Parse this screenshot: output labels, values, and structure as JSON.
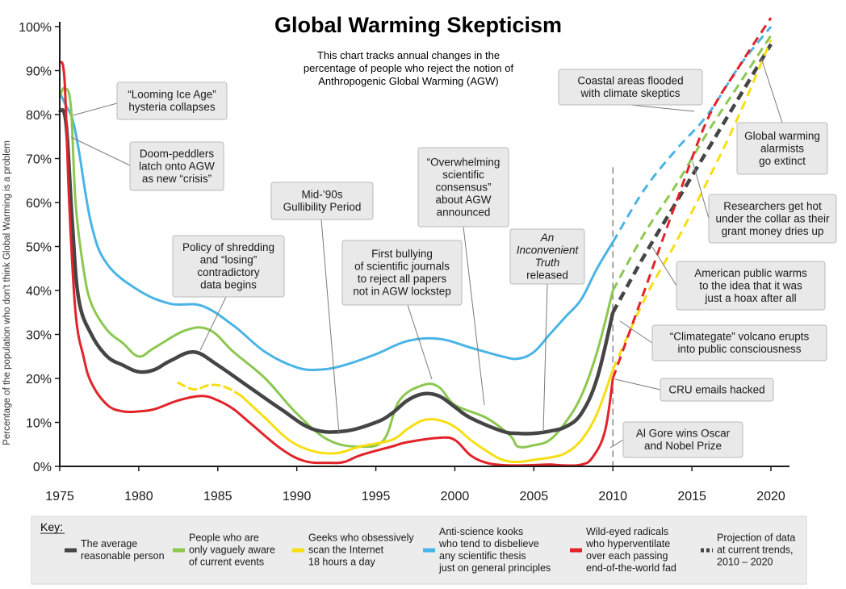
{
  "chart_data": {
    "type": "line",
    "title": "Global Warming Skepticism",
    "subtitle": [
      "This chart tracks annual changes in the",
      "percentage of people who reject the notion of",
      "Anthropogenic Global Warming (AGW)"
    ],
    "ylabel": "Percentage of the population who don't think Global Warming is a problem",
    "xlim": [
      1975,
      2020
    ],
    "ylim": [
      0,
      100
    ],
    "x_ticks": [
      1975,
      1980,
      1985,
      1990,
      1995,
      2000,
      2005,
      2010,
      2015,
      2020
    ],
    "x_tick_labels": [
      "1975",
      "1980",
      "1985",
      "1990",
      "1995",
      "2000",
      "2005",
      "2010",
      "2015",
      "2020"
    ],
    "y_ticks": [
      0,
      10,
      20,
      30,
      40,
      50,
      60,
      70,
      80,
      90,
      100
    ],
    "y_tick_labels": [
      "0%",
      "10%",
      "20%",
      "30%",
      "40%",
      "50%",
      "60%",
      "70%",
      "80%",
      "90%",
      "100%"
    ],
    "projection_start": 2010,
    "series": [
      {
        "name": "Anti-science kooks who tend to disbelieve any scientific thesis just on general principles",
        "color": "#4ab4e6",
        "x": [
          1975,
          1975.4,
          1975.8,
          1976.2,
          1977,
          1978,
          1980,
          1982,
          1984,
          1986,
          1988,
          1990,
          1991.5,
          1993,
          1995,
          1997,
          1999,
          2001,
          2003,
          2004,
          2005,
          2006,
          2007,
          2008,
          2009,
          2010
        ],
        "values": [
          85,
          82,
          79,
          72,
          55,
          46,
          40,
          37,
          36.5,
          32,
          26,
          22.5,
          22,
          23,
          25.5,
          28.5,
          29,
          27,
          25,
          24.5,
          26,
          30,
          34,
          38,
          45,
          51
        ],
        "projection": {
          "x": [
            2010,
            2012,
            2014,
            2016,
            2018,
            2020
          ],
          "values": [
            51,
            63,
            72,
            80,
            91,
            100
          ]
        }
      },
      {
        "name": "People who are only vaguely aware of current events",
        "color": "#8cc850",
        "x": [
          1975,
          1975.3,
          1975.7,
          1976,
          1976.5,
          1977,
          1978,
          1979,
          1980,
          1981,
          1983,
          1984.5,
          1986,
          1988,
          1990,
          1992,
          1994,
          1995.5,
          1996.5,
          1998,
          1999,
          2000,
          2002,
          2003.5,
          2004,
          2005,
          2006,
          2007,
          2008,
          2009,
          2010
        ],
        "values": [
          84,
          86,
          82,
          60,
          45,
          37,
          31,
          28,
          25,
          27,
          31,
          31,
          26,
          20,
          12,
          6,
          4.5,
          6,
          15,
          18.5,
          18,
          14,
          11,
          7,
          4.5,
          4.8,
          6,
          10,
          16,
          26,
          40
        ],
        "projection": {
          "x": [
            2010,
            2012,
            2014,
            2016,
            2018,
            2020
          ],
          "values": [
            40,
            53,
            64,
            76,
            87,
            98
          ]
        }
      },
      {
        "name": "The average reasonable person",
        "color": "#454545",
        "x": [
          1975,
          1975.4,
          1975.8,
          1976.2,
          1977,
          1978,
          1979,
          1980,
          1981,
          1982,
          1983.5,
          1985,
          1987,
          1989,
          1991,
          1993,
          1995,
          1996,
          1997,
          1998,
          1999,
          2000,
          2001,
          2003,
          2004,
          2005,
          2006,
          2007,
          2008,
          2009,
          2010
        ],
        "values": [
          81,
          78,
          55,
          38,
          30,
          25,
          23,
          21.5,
          22,
          24,
          26,
          23,
          18,
          13,
          8.5,
          8,
          10,
          12,
          15,
          16.5,
          16,
          13.5,
          11,
          8,
          7.5,
          7.5,
          8,
          9,
          12,
          20,
          35
        ],
        "projection": {
          "x": [
            2010,
            2012,
            2014,
            2016,
            2018,
            2020
          ],
          "values": [
            35,
            48,
            60,
            72,
            84,
            96
          ]
        }
      },
      {
        "name": "Geeks who obsessively scan the Internet 18 hours a day",
        "color": "#f7de12",
        "x": [
          1982.5,
          1983.5,
          1984.5,
          1985.5,
          1986.5,
          1988,
          1989.5,
          1991,
          1992.5,
          1994,
          1996,
          1997,
          1998,
          1999,
          2000,
          2001,
          2002,
          2003,
          2004,
          2005,
          2006,
          2007,
          2008,
          2009,
          2010
        ],
        "values": [
          19,
          17.5,
          18.5,
          18,
          16,
          11,
          6,
          3.5,
          3,
          4.5,
          6,
          8.5,
          10.5,
          10.5,
          9,
          6,
          3.5,
          1.5,
          1,
          1.5,
          2,
          3,
          6,
          12,
          22
        ],
        "dashed_until": 1987.5,
        "projection": {
          "x": [
            2010,
            2012,
            2014,
            2016,
            2018,
            2020
          ],
          "values": [
            22,
            38,
            51,
            65,
            80,
            97
          ]
        }
      },
      {
        "name": "Wild-eyed radicals who hyperventilate over each passing end-of-the-world fad",
        "color": "#e2232a",
        "x": [
          1975,
          1975.3,
          1975.6,
          1976,
          1976.5,
          1977,
          1978,
          1979,
          1980,
          1981,
          1982.5,
          1984,
          1985,
          1986,
          1987,
          1989,
          1990.5,
          1992,
          1993,
          1994,
          1996,
          1997,
          1999,
          2000,
          2001,
          2002,
          2003,
          2004,
          2005,
          2006,
          2007,
          2008,
          2008.7,
          2009.5,
          2010
        ],
        "values": [
          92,
          88,
          60,
          35,
          25,
          19,
          14,
          12.5,
          12.5,
          13,
          15,
          16,
          15,
          13,
          10,
          4,
          1.2,
          0.8,
          1,
          2.5,
          4.5,
          5.5,
          6.5,
          6,
          2.5,
          0.8,
          0.3,
          0.2,
          0.3,
          0.4,
          0.2,
          0.4,
          2,
          8,
          20
        ],
        "projection": {
          "x": [
            2010,
            2012,
            2014,
            2016,
            2018,
            2020
          ],
          "values": [
            20,
            40,
            60,
            79,
            91,
            102
          ]
        }
      }
    ],
    "annotations": [
      {
        "lines": [
          "“Looming Ice Age”",
          "hysteria collapses"
        ]
      },
      {
        "lines": [
          "Doom-peddlers",
          "latch onto AGW",
          "as new “crisis”"
        ]
      },
      {
        "lines": [
          "Policy of shredding",
          "and “losing”",
          "contradictory",
          "data begins"
        ]
      },
      {
        "lines": [
          "Mid-’90s",
          "Gullibility Period"
        ]
      },
      {
        "lines": [
          "First bullying",
          "of scientific journals",
          "to reject all papers",
          "not in AGW lockstep"
        ]
      },
      {
        "lines": [
          "“Overwhelming",
          "scientific",
          "consensus”",
          "about AGW",
          "announced"
        ]
      },
      {
        "lines": [
          "An",
          "Inconvenient",
          "Truth",
          "released"
        ],
        "italic_lines": 3
      },
      {
        "lines": [
          "Coastal areas flooded",
          "with climate skeptics"
        ]
      },
      {
        "lines": [
          "Global warming",
          "alarmists",
          "go extinct"
        ]
      },
      {
        "lines": [
          "Researchers get hot",
          "under the collar as their",
          "grant money dries up"
        ]
      },
      {
        "lines": [
          "American public warms",
          "to the idea that it was",
          "just a hoax after all"
        ]
      },
      {
        "lines": [
          "“Climategate” volcano erupts",
          "into public consciousness"
        ]
      },
      {
        "lines": [
          "CRU emails hacked"
        ]
      },
      {
        "lines": [
          "Al Gore wins Oscar",
          "and Nobel Prize"
        ]
      }
    ]
  },
  "key": {
    "label": "Key:",
    "items": [
      {
        "lines": [
          "The average",
          "reasonable person"
        ],
        "color": "#454545",
        "dashed": false
      },
      {
        "lines": [
          "People who are",
          "only vaguely aware",
          "of current events"
        ],
        "color": "#8cc850",
        "dashed": false
      },
      {
        "lines": [
          "Geeks who obsessively",
          "scan the Internet",
          "18 hours a day"
        ],
        "color": "#f7de12",
        "dashed": false
      },
      {
        "lines": [
          "Anti-science kooks",
          "who tend to disbelieve",
          "any scientific thesis",
          "just on general principles"
        ],
        "color": "#4ab4e6",
        "dashed": false
      },
      {
        "lines": [
          "Wild-eyed radicals",
          "who hyperventilate",
          "over each passing",
          "end-of-the-world fad"
        ],
        "color": "#e2232a",
        "dashed": false
      },
      {
        "lines": [
          "Projection of data",
          "at current trends,",
          "2010 – 2020"
        ],
        "color": "#454545",
        "dashed": true
      }
    ]
  }
}
